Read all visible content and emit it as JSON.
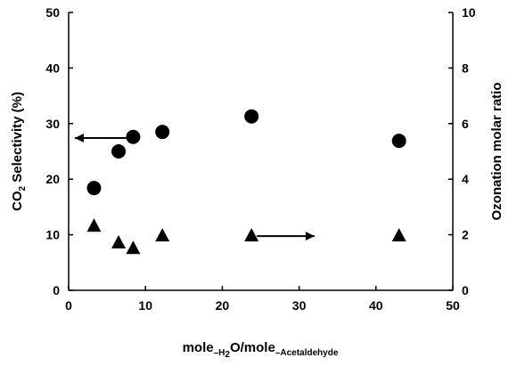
{
  "chart_data": {
    "type": "scatter",
    "xlabel": {
      "pre": "mole",
      "sub1": "–H",
      "sub2": "2",
      "mid": "O/mole",
      "sub3": "–Acetaldehyde"
    },
    "ylabel_left": {
      "pre": "CO",
      "sub": "2",
      "post": " Selectivity (%)"
    },
    "ylabel_right": "Ozonation molar ratio",
    "xlim": [
      0,
      50
    ],
    "ylim_left": [
      0,
      50
    ],
    "ylim_right": [
      0,
      10
    ],
    "x_ticks": [
      "0",
      "10",
      "20",
      "30",
      "40",
      "50"
    ],
    "y_left_ticks": [
      "0",
      "10",
      "20",
      "30",
      "40",
      "50"
    ],
    "y_right_ticks": [
      "0",
      "2",
      "4",
      "6",
      "8",
      "10"
    ],
    "grid": false,
    "series": [
      {
        "marker": "circle",
        "axis": "left",
        "color": "#000000",
        "x": [
          3.3,
          6.5,
          8.4,
          12.2,
          23.8,
          43.0
        ],
        "y": [
          18.4,
          25.0,
          27.6,
          28.5,
          31.3,
          26.9
        ]
      },
      {
        "marker": "triangle",
        "axis": "right",
        "color": "#000000",
        "x": [
          3.3,
          6.5,
          8.4,
          12.2,
          23.8,
          43.0
        ],
        "y": [
          2.3,
          1.7,
          1.5,
          1.95,
          1.95,
          1.95
        ]
      }
    ],
    "annotations": [
      {
        "type": "arrow",
        "points_to": "left-axis",
        "from": [
          8.2,
          27.4
        ],
        "to": [
          0.8,
          27.4
        ]
      },
      {
        "type": "arrow",
        "points_to": "right-axis",
        "from": [
          24.5,
          1.95
        ],
        "to": [
          32.0,
          1.95
        ]
      }
    ]
  }
}
